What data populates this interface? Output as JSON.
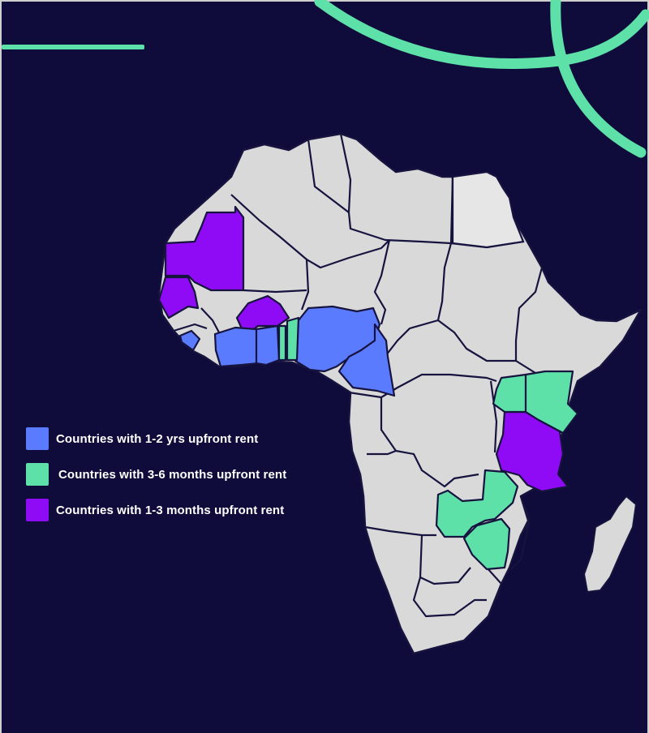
{
  "colors": {
    "background": "#0f0b3a",
    "accent": "#5ee0a9",
    "land": "#d9d9d9",
    "border": "#16133f",
    "one_two_years": "#5b7bff",
    "three_six_months": "#5ee0a9",
    "one_three_months": "#8f0bf5"
  },
  "legend": [
    {
      "label": "Countries with 1-2 yrs upfront rent",
      "color": "#5b7bff"
    },
    {
      "label": "Countries with 3-6 months upfront rent",
      "color": "#5ee0a9"
    },
    {
      "label": "Countries with 1-3 months upfront rent",
      "color": "#8f0bf5"
    }
  ]
}
